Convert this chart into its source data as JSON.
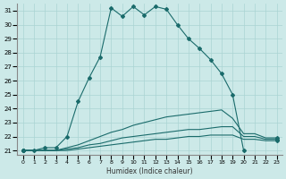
{
  "xlabel": "Humidex (Indice chaleur)",
  "bg_color": "#cce9e8",
  "grid_color": "#aad4d3",
  "line_color": "#1a6b6b",
  "xlim": [
    -0.5,
    23.5
  ],
  "ylim": [
    20.7,
    31.5
  ],
  "xticks": [
    0,
    1,
    2,
    3,
    4,
    5,
    6,
    7,
    8,
    9,
    10,
    11,
    12,
    13,
    14,
    15,
    16,
    17,
    18,
    19,
    20,
    21,
    22,
    23
  ],
  "yticks": [
    21,
    22,
    23,
    24,
    25,
    26,
    27,
    28,
    29,
    30,
    31
  ],
  "lines": [
    {
      "x": [
        0,
        1,
        2,
        3,
        4,
        5,
        6,
        7,
        8,
        9,
        10,
        11,
        12,
        13,
        14,
        15,
        16,
        17,
        18,
        19,
        20
      ],
      "y": [
        21,
        21,
        21.2,
        21.2,
        22,
        24.5,
        26.2,
        27.7,
        31.2,
        30.6,
        31.3,
        30.7,
        31.3,
        31.1,
        30.0,
        29.0,
        28.3,
        27.5,
        26.5,
        25.0,
        21.0
      ]
    },
    {
      "x": [
        0,
        1,
        2,
        3,
        4,
        5,
        6,
        7,
        8,
        9,
        10,
        11,
        12,
        13,
        14,
        15,
        16,
        17,
        18,
        19,
        20,
        21,
        22,
        23
      ],
      "y": [
        21,
        21,
        21,
        21,
        21.2,
        21.4,
        21.7,
        22.0,
        22.3,
        22.5,
        22.8,
        23.0,
        23.2,
        23.4,
        23.5,
        23.6,
        23.7,
        23.8,
        23.9,
        23.3,
        22.2,
        22.2,
        21.9,
        21.9
      ]
    },
    {
      "x": [
        0,
        1,
        2,
        3,
        4,
        5,
        6,
        7,
        8,
        9,
        10,
        11,
        12,
        13,
        14,
        15,
        16,
        17,
        18,
        19,
        20,
        21,
        22,
        23
      ],
      "y": [
        21,
        21,
        21,
        21,
        21.1,
        21.2,
        21.4,
        21.5,
        21.7,
        21.9,
        22.0,
        22.1,
        22.2,
        22.3,
        22.4,
        22.5,
        22.5,
        22.6,
        22.7,
        22.7,
        22.0,
        22.0,
        21.8,
        21.8
      ]
    },
    {
      "x": [
        0,
        1,
        2,
        3,
        4,
        5,
        6,
        7,
        8,
        9,
        10,
        11,
        12,
        13,
        14,
        15,
        16,
        17,
        18,
        19,
        20,
        21,
        22,
        23
      ],
      "y": [
        21,
        21,
        21,
        21,
        21,
        21.1,
        21.2,
        21.3,
        21.4,
        21.5,
        21.6,
        21.7,
        21.8,
        21.8,
        21.9,
        22.0,
        22.0,
        22.1,
        22.1,
        22.1,
        21.8,
        21.8,
        21.7,
        21.7
      ]
    }
  ]
}
